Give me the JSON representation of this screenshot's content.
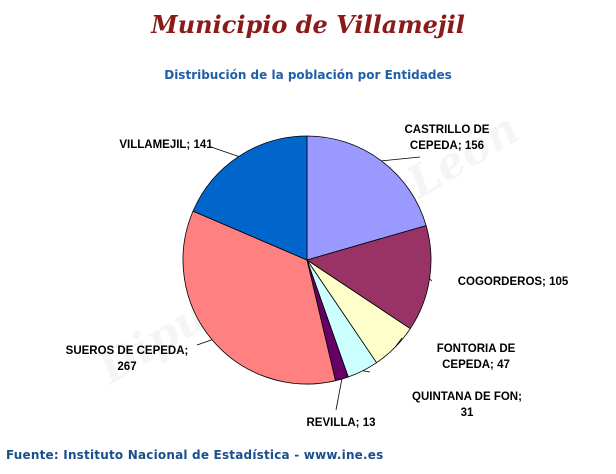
{
  "page": {
    "title": "Municipio de Villamejil",
    "footer": "Fuente: Instituto Nacional de Estadística - www.ine.es"
  },
  "chart_data": {
    "type": "pie",
    "title": "Distribución de la población por Entidades",
    "slices": [
      {
        "label": [
          "CASTRILLO DE",
          "CEPEDA; 156"
        ],
        "value": 156,
        "color": "#9999ff"
      },
      {
        "label": [
          "COGORDEROS; 105"
        ],
        "value": 105,
        "color": "#993366"
      },
      {
        "label": [
          "FONTORIA DE",
          "CEPEDA; 47"
        ],
        "value": 47,
        "color": "#ffffcc"
      },
      {
        "label": [
          "QUINTANA DE FON;",
          "31"
        ],
        "value": 31,
        "color": "#ccffff"
      },
      {
        "label": [
          "REVILLA; 13"
        ],
        "value": 13,
        "color": "#660066"
      },
      {
        "label": [
          "SUEROS DE CEPEDA;",
          "267"
        ],
        "value": 267,
        "color": "#ff8080"
      },
      {
        "label": [
          "VILLAMEJIL; 141"
        ],
        "value": 141,
        "color": "#0066cc"
      }
    ]
  }
}
